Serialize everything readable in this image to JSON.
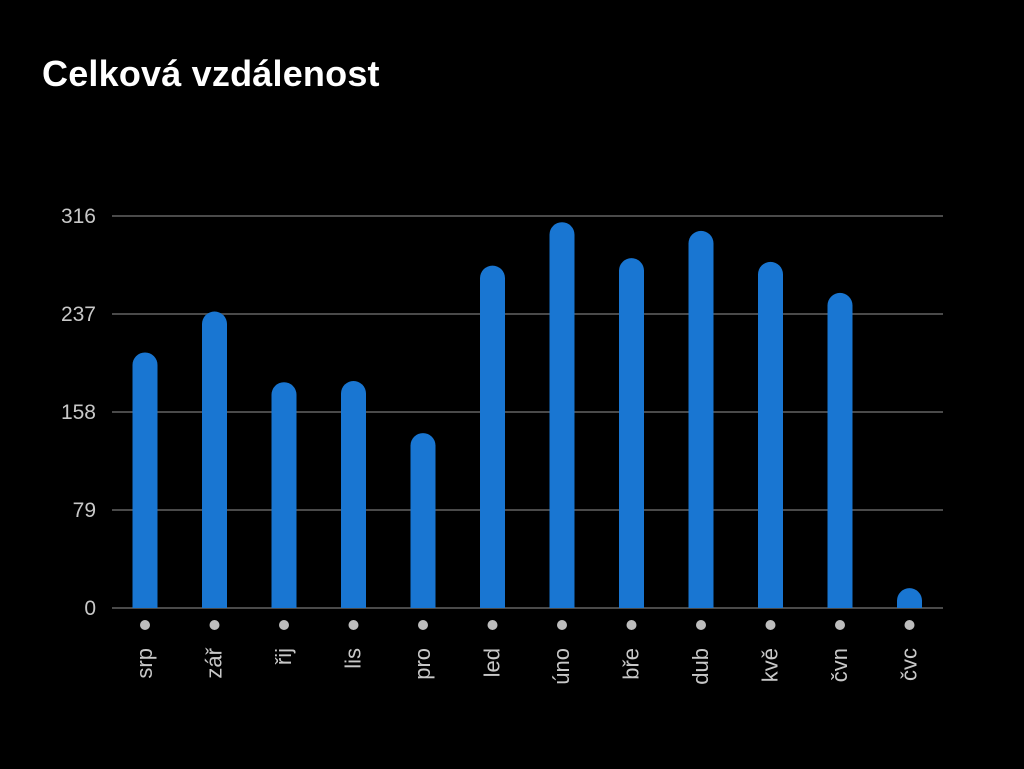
{
  "colors": {
    "background": "#000000",
    "bar": "#1976d2",
    "grid": "#4a4a4a",
    "label": "#c8c8c8",
    "title": "#ffffff",
    "dot": "#bdbdbd"
  },
  "chart_data": {
    "type": "bar",
    "title": "Celková vzdálenost",
    "categories": [
      "srp",
      "zář",
      "řij",
      "lis",
      "pro",
      "led",
      "úno",
      "bře",
      "dub",
      "kvě",
      "čvn",
      "čvc"
    ],
    "values": [
      206,
      239,
      182,
      183,
      141,
      276,
      311,
      282,
      304,
      279,
      254,
      16
    ],
    "yticks": [
      "0",
      "79",
      "158",
      "237",
      "316"
    ],
    "ylim": [
      0,
      316
    ],
    "grid": true,
    "legend": "none"
  }
}
